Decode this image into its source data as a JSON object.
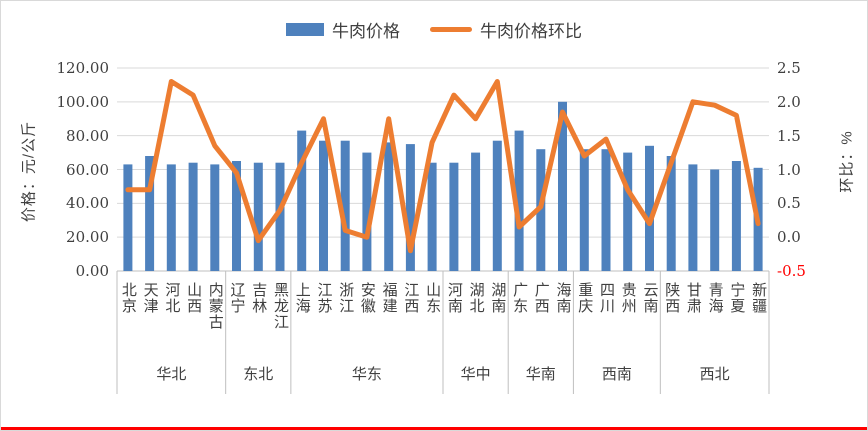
{
  "chart": {
    "legend": {
      "bar_label": "牛肉价格",
      "line_label": "牛肉价格环比"
    },
    "left_axis_title": "价格：元/公斤",
    "right_axis_title": "环比：%"
  },
  "chart_data": {
    "type": "combo",
    "title": "",
    "categories": [
      "北京",
      "天津",
      "河北",
      "山西",
      "内蒙古",
      "辽宁",
      "吉林",
      "黑龙江",
      "上海",
      "江苏",
      "浙江",
      "安徽",
      "福建",
      "江西",
      "山东",
      "河南",
      "湖北",
      "湖南",
      "广东",
      "广西",
      "海南",
      "重庆",
      "四川",
      "贵州",
      "云南",
      "陕西",
      "甘肃",
      "青海",
      "宁夏",
      "新疆"
    ],
    "regions": [
      {
        "label": "华北",
        "count": 5
      },
      {
        "label": "东北",
        "count": 3
      },
      {
        "label": "华东",
        "count": 7
      },
      {
        "label": "华中",
        "count": 3
      },
      {
        "label": "华南",
        "count": 3
      },
      {
        "label": "西南",
        "count": 4
      },
      {
        "label": "西北",
        "count": 5
      }
    ],
    "series": [
      {
        "name": "牛肉价格",
        "type": "bar",
        "axis": "left",
        "color": "#4e81bd",
        "values": [
          63,
          68,
          63,
          64,
          63,
          65,
          64,
          64,
          83,
          77,
          77,
          70,
          76,
          75,
          64,
          64,
          70,
          77,
          83,
          72,
          100,
          72,
          72,
          70,
          74,
          68,
          63,
          60,
          65,
          61
        ]
      },
      {
        "name": "牛肉价格环比",
        "type": "line",
        "axis": "right",
        "color": "#ed7d31",
        "values": [
          0.7,
          0.7,
          2.3,
          2.1,
          1.35,
          0.95,
          -0.05,
          0.4,
          1.1,
          1.75,
          0.1,
          0.0,
          1.75,
          -0.2,
          1.4,
          2.1,
          1.75,
          2.3,
          0.15,
          0.45,
          1.85,
          1.2,
          1.45,
          0.7,
          0.2,
          1.1,
          2.0,
          1.95,
          1.8,
          0.2
        ]
      }
    ],
    "left_axis": {
      "label": "价格：元/公斤",
      "min": 0,
      "max": 120,
      "step": 20,
      "ticks": [
        "120.00",
        "100.00",
        "80.00",
        "60.00",
        "40.00",
        "20.00",
        "0.00"
      ]
    },
    "right_axis": {
      "label": "环比：%",
      "min": -0.5,
      "max": 2.5,
      "step": 0.5,
      "ticks": [
        "2.5",
        "2.0",
        "1.5",
        "1.0",
        "0.5",
        "0.0",
        "-0.5"
      ],
      "negative_tick_color": "#ff0000"
    },
    "grid": true,
    "legend_position": "top",
    "colors": {
      "bar": "#4e81bd",
      "line": "#ed7d31",
      "grid": "#d9d9d9",
      "axis_line": "#bfbfbf",
      "text": "#404040",
      "negative": "#ff0000"
    }
  }
}
